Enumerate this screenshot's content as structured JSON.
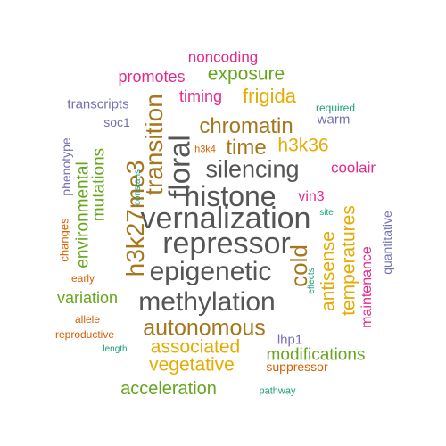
{
  "palette": {
    "gray": "#555555",
    "olive": "#a6761d",
    "yellow": "#e6ab02",
    "magenta": "#e7298a",
    "green": "#66a61e",
    "purple": "#7570b3",
    "orange": "#d95f02",
    "teal": "#1b9e77"
  },
  "words": [
    {
      "text": "repressor",
      "color": "gray"
    },
    {
      "text": "vernalization",
      "color": "gray"
    },
    {
      "text": "epigenetic",
      "color": "gray"
    },
    {
      "text": "methylation",
      "color": "gray"
    },
    {
      "text": "histone",
      "color": "gray"
    },
    {
      "text": "silencing",
      "color": "gray"
    },
    {
      "text": "floral",
      "color": "gray"
    },
    {
      "text": "h3k27me3",
      "color": "olive"
    },
    {
      "text": "transition",
      "color": "olive"
    },
    {
      "text": "chromatin",
      "color": "olive"
    },
    {
      "text": "time",
      "color": "olive"
    },
    {
      "text": "cold",
      "color": "olive"
    },
    {
      "text": "autonomous",
      "color": "olive"
    },
    {
      "text": "h3k36",
      "color": "yellow"
    },
    {
      "text": "frigida",
      "color": "yellow"
    },
    {
      "text": "antisense",
      "color": "yellow"
    },
    {
      "text": "temperatures",
      "color": "yellow"
    },
    {
      "text": "associated",
      "color": "yellow"
    },
    {
      "text": "vegetative",
      "color": "yellow"
    },
    {
      "text": "exposure",
      "color": "green"
    },
    {
      "text": "mutations",
      "color": "green"
    },
    {
      "text": "environmental",
      "color": "green"
    },
    {
      "text": "variation",
      "color": "green"
    },
    {
      "text": "modifications",
      "color": "green"
    },
    {
      "text": "acceleration",
      "color": "green"
    },
    {
      "text": "noncoding",
      "color": "magenta"
    },
    {
      "text": "promotes",
      "color": "magenta"
    },
    {
      "text": "timing",
      "color": "magenta"
    },
    {
      "text": "coolair",
      "color": "magenta"
    },
    {
      "text": "vin3",
      "color": "magenta"
    },
    {
      "text": "maintenance",
      "color": "magenta"
    },
    {
      "text": "transcripts",
      "color": "purple"
    },
    {
      "text": "soc1",
      "color": "purple"
    },
    {
      "text": "phenotype",
      "color": "purple"
    },
    {
      "text": "warm",
      "color": "purple"
    },
    {
      "text": "quantitative",
      "color": "purple"
    },
    {
      "text": "lhp1",
      "color": "purple"
    },
    {
      "text": "h3k4",
      "color": "orange"
    },
    {
      "text": "changes",
      "color": "orange"
    },
    {
      "text": "early",
      "color": "orange"
    },
    {
      "text": "allele",
      "color": "orange"
    },
    {
      "text": "reproductive",
      "color": "orange"
    },
    {
      "text": "suppressor",
      "color": "orange"
    },
    {
      "text": "required",
      "color": "teal"
    },
    {
      "text": "constans",
      "color": "teal"
    },
    {
      "text": "site",
      "color": "teal"
    },
    {
      "text": "effects",
      "color": "teal"
    },
    {
      "text": "length",
      "color": "teal"
    },
    {
      "text": "pathway",
      "color": "teal"
    }
  ]
}
